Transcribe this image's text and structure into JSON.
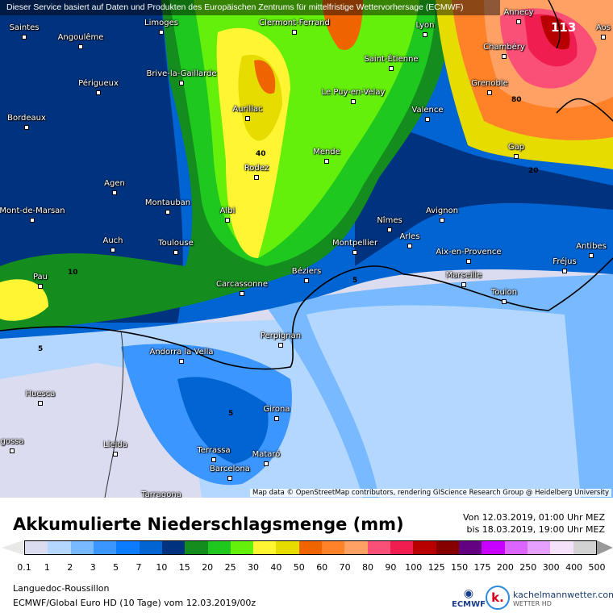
{
  "banner": "Dieser Service basiert auf Daten und Produkten des Europäischen Zentrums für mittelfristige Wettervorhersage (ECMWF)",
  "cities": [
    {
      "name": "Saintes"
    },
    {
      "name": "Angoulême"
    },
    {
      "name": "Limoges"
    },
    {
      "name": "Clermont-Ferrand"
    },
    {
      "name": "Lyon"
    },
    {
      "name": "Annecy"
    },
    {
      "name": "Aos"
    },
    {
      "name": "Périgueux"
    },
    {
      "name": "Brive-la-Gaillarde"
    },
    {
      "name": "Aurillac"
    },
    {
      "name": "Saint-Étienne"
    },
    {
      "name": "Le Puy-en-Velay"
    },
    {
      "name": "Chambéry"
    },
    {
      "name": "Grenoble"
    },
    {
      "name": "Valence"
    },
    {
      "name": "Bordeaux"
    },
    {
      "name": "Mende"
    },
    {
      "name": "Gap"
    },
    {
      "name": "Rodez"
    },
    {
      "name": "Agen"
    },
    {
      "name": "Montauban"
    },
    {
      "name": "Albi"
    },
    {
      "name": "Mont-de-Marsan"
    },
    {
      "name": "Nîmes"
    },
    {
      "name": "Avignon"
    },
    {
      "name": "Arles"
    },
    {
      "name": "Auch"
    },
    {
      "name": "Toulouse"
    },
    {
      "name": "Montpellier"
    },
    {
      "name": "Aix-en-Provence"
    },
    {
      "name": "Antibes"
    },
    {
      "name": "Fréjus"
    },
    {
      "name": "Pau"
    },
    {
      "name": "Carcassonne"
    },
    {
      "name": "Béziers"
    },
    {
      "name": "Marseille"
    },
    {
      "name": "Toulon"
    },
    {
      "name": "Perpignan"
    },
    {
      "name": "Andorra la Vella"
    },
    {
      "name": "Huesca"
    },
    {
      "name": "Girona"
    },
    {
      "name": "Lleida"
    },
    {
      "name": "Terrassa"
    },
    {
      "name": "Mataró"
    },
    {
      "name": "Barcelona"
    },
    {
      "name": "Tarragona"
    },
    {
      "name": "gossa"
    }
  ],
  "contour_labels": [
    "113",
    "80",
    "40",
    "20",
    "10",
    "5",
    "5",
    "5"
  ],
  "attribution": "Map data © OpenStreetMap contributors, rendering GIScience Research Group @ Heidelberg University",
  "title": "Akkumulierte Niederschlagsmenge (mm)",
  "date_from": "Von 12.03.2019, 01:00 Uhr MEZ",
  "date_to": "bis 18.03.2019, 19:00 Uhr MEZ",
  "legend": {
    "colors": [
      "#dcdcf0",
      "#b4d7ff",
      "#78b9ff",
      "#3c96ff",
      "#0a7dff",
      "#0064d2",
      "#00337f",
      "#148c1e",
      "#1ec81e",
      "#64f00a",
      "#fff532",
      "#e6dc00",
      "#f06400",
      "#ff8228",
      "#ffa064",
      "#fa5078",
      "#f01e50",
      "#b90000",
      "#870000",
      "#640082",
      "#c800ff",
      "#dc64ff",
      "#e6a0ff",
      "#f5e1fa",
      "#d2d2d2"
    ],
    "ticks": [
      "0.1",
      "1",
      "2",
      "3",
      "5",
      "7",
      "10",
      "15",
      "20",
      "25",
      "30",
      "40",
      "50",
      "60",
      "70",
      "80",
      "90",
      "100",
      "125",
      "150",
      "175",
      "200",
      "250",
      "300",
      "400",
      "500"
    ]
  },
  "region": "Languedoc-Roussillon",
  "model": "ECMWF/Global Euro HD (10 Tage) vom 12.03.2019/00z",
  "logos": {
    "ecmwf": "ECMWF",
    "kachelmann": "kachelmannwetter.com",
    "kachelmann_sub": "WETTER HD",
    "k": "k."
  }
}
